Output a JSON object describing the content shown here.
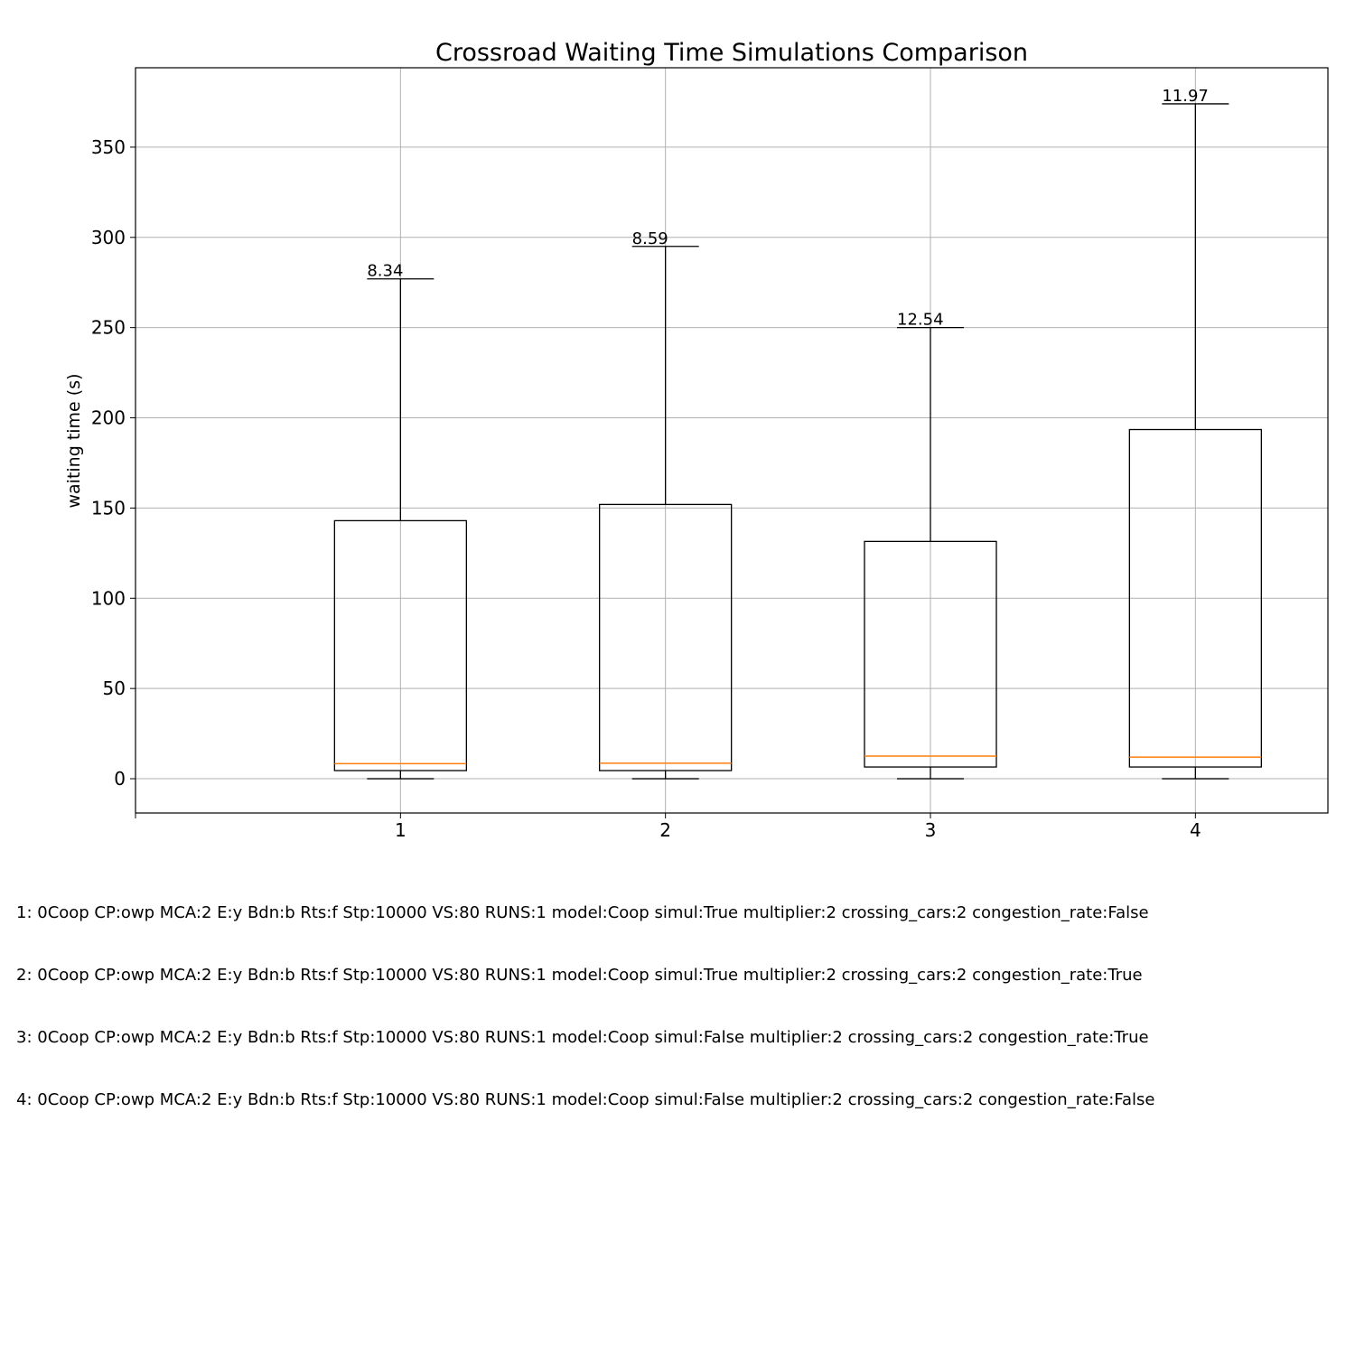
{
  "chart_data": {
    "type": "box",
    "title": "Crossroad Waiting Time Simulations Comparison",
    "xlabel": "",
    "ylabel": "waiting time (s)",
    "ylim": [
      -19,
      394
    ],
    "xlim": [
      0,
      4.5
    ],
    "grid": true,
    "categories": [
      "1",
      "2",
      "3",
      "4"
    ],
    "y_ticks": [
      0,
      50,
      100,
      150,
      200,
      250,
      300,
      350
    ],
    "boxes": [
      {
        "label": "1",
        "whisker_low": 0,
        "q1": 4.5,
        "median": 8.34,
        "q3": 143,
        "whisker_high": 277,
        "annotation": "8.34"
      },
      {
        "label": "2",
        "whisker_low": 0,
        "q1": 4.5,
        "median": 8.59,
        "q3": 152,
        "whisker_high": 295,
        "annotation": "8.59"
      },
      {
        "label": "3",
        "whisker_low": 0,
        "q1": 6.5,
        "median": 12.54,
        "q3": 131.5,
        "whisker_high": 250,
        "annotation": "12.54"
      },
      {
        "label": "4",
        "whisker_low": 0,
        "q1": 6.5,
        "median": 11.97,
        "q3": 193.5,
        "whisker_high": 374,
        "annotation": "11.97"
      }
    ],
    "colors": {
      "box": "#000000",
      "median": "#ff7f0e",
      "grid": "#b0b0b0"
    }
  },
  "notes": [
    "1: 0Coop CP:owp MCA:2 E:y Bdn:b Rts:f Stp:10000 VS:80 RUNS:1 model:Coop simul:True multiplier:2 crossing_cars:2 congestion_rate:False",
    "2: 0Coop CP:owp MCA:2 E:y Bdn:b Rts:f Stp:10000 VS:80 RUNS:1 model:Coop simul:True multiplier:2 crossing_cars:2 congestion_rate:True",
    "3: 0Coop CP:owp MCA:2 E:y Bdn:b Rts:f Stp:10000 VS:80 RUNS:1 model:Coop simul:False multiplier:2 crossing_cars:2 congestion_rate:True",
    "4: 0Coop CP:owp MCA:2 E:y Bdn:b Rts:f Stp:10000 VS:80 RUNS:1 model:Coop simul:False multiplier:2 crossing_cars:2 congestion_rate:False"
  ]
}
